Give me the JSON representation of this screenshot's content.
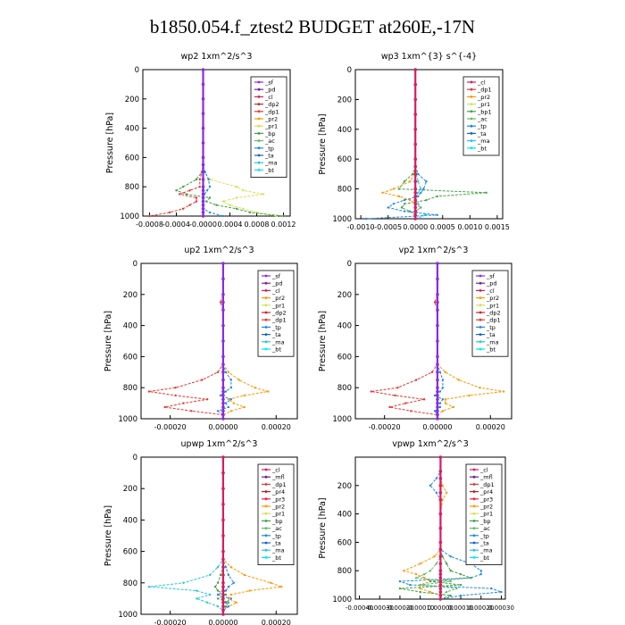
{
  "page": {
    "title": "b1850.054.f_ztest2  BUDGET at260E,-17N"
  },
  "colors": {
    "sf": "#8a2be2",
    "pd": "#7b1fa2",
    "cl": "#d81b60",
    "dp2": "#c62828",
    "dp1": "#e53935",
    "pr4": "#b71c1c",
    "pr3": "#ff1744",
    "pr2": "#ff9800",
    "pr1": "#d4e157",
    "bp": "#43a047",
    "bp1": "#43a047",
    "ac": "#66bb6a",
    "tp": "#1e88e5",
    "ta": "#1565c0",
    "ma": "#26c6da",
    "bt": "#00e5ff",
    "mfl": "#6a1b9a"
  },
  "chart_data": [
    {
      "id": "wp2",
      "type": "line",
      "title": "wp2   1xm^2/s^3",
      "ylabel": "Pressure [hPa]",
      "xlim": [
        -0.0009,
        0.0013
      ],
      "ylim": [
        1000,
        0
      ],
      "xticks": [
        "-0.0008",
        "-0.0004",
        "-0.0000",
        "0.0004",
        "0.0008",
        "0.0012"
      ],
      "xtick_values": [
        -0.0008,
        -0.0004,
        0,
        0.0004,
        0.0008,
        0.0012
      ],
      "yticks": [
        0,
        200,
        400,
        600,
        800,
        1000
      ],
      "legend": [
        "_sf",
        "_pd",
        "_cl",
        "_dp2",
        "_dp1",
        "_pr2",
        "_pr1",
        "_bp",
        "_ac",
        "_tp",
        "_ta",
        "_ma",
        "_bt"
      ],
      "pressure": [
        0,
        100,
        200,
        300,
        400,
        500,
        600,
        650,
        700,
        750,
        800,
        825,
        850,
        875,
        900,
        925,
        950,
        975,
        1000
      ],
      "series": [
        {
          "name": "_pr1",
          "color": "pr1",
          "values": [
            0,
            0,
            0,
            0,
            0,
            0,
            0,
            0,
            2e-05,
            0.0001,
            0.0005,
            0.0006,
            0.0009,
            0.0005,
            0.0003,
            0.0004,
            0.0006,
            0.0008,
            0.0011
          ]
        },
        {
          "name": "_bp",
          "color": "bp",
          "values": [
            0,
            0,
            0,
            0,
            0,
            0,
            0,
            0,
            -2e-05,
            -0.0001,
            -0.0003,
            -0.0004,
            -0.00025,
            0.0001,
            5e-05,
            0.0002,
            0.0005,
            0.0007,
            0.0012
          ]
        },
        {
          "name": "_dp1",
          "color": "dp1",
          "values": [
            0,
            0,
            0,
            0,
            0,
            0,
            0,
            0,
            -2e-05,
            -5e-05,
            -5e-05,
            -0.0002,
            -0.00035,
            -0.0001,
            -0.0001,
            -0.0002,
            -0.0003,
            -0.0005,
            -0.0008
          ]
        },
        {
          "name": "_tp",
          "color": "tp",
          "values": [
            0,
            0,
            0,
            0,
            0,
            0,
            0,
            0,
            3e-05,
            8e-05,
            0.0001,
            6e-05,
            2e-05,
            0,
            0,
            0,
            0,
            0.0001,
            0.0003
          ]
        },
        {
          "name": "_sf",
          "color": "sf",
          "values": [
            0,
            0,
            0,
            0,
            0,
            0,
            0,
            0,
            0,
            0,
            0,
            0,
            0,
            0,
            0,
            0,
            0,
            0,
            0
          ]
        }
      ]
    },
    {
      "id": "wp3",
      "type": "line",
      "title": "wp3   1xm^{3} s^{-4}",
      "ylabel": "Pressure [hPa]",
      "xlim": [
        -0.0011,
        0.0016
      ],
      "ylim": [
        1000,
        0
      ],
      "xticks": [
        "-0.0010",
        "-0.0005",
        "0.0000",
        "0.0005",
        "0.0010",
        "0.0015"
      ],
      "xtick_values": [
        -0.001,
        -0.0005,
        0,
        0.0005,
        0.001,
        0.0015
      ],
      "yticks": [
        0,
        200,
        400,
        600,
        800,
        1000
      ],
      "legend": [
        "_cl",
        "_dp1",
        "_pr2",
        "_pr1",
        "_bp1",
        "_ac",
        "_tp",
        "_ta",
        "_ma",
        "_bt"
      ],
      "pressure": [
        0,
        100,
        200,
        300,
        400,
        500,
        600,
        650,
        700,
        750,
        800,
        825,
        850,
        875,
        900,
        925,
        950,
        975,
        1000
      ],
      "series": [
        {
          "name": "_bp1",
          "color": "bp1",
          "values": [
            0,
            0,
            0,
            0,
            0,
            0,
            0,
            0,
            -5e-05,
            -0.0002,
            -0.0003,
            0.0013,
            0.0004,
            0.0002,
            -0.0002,
            -0.00025,
            -0.0001,
            0,
            0
          ]
        },
        {
          "name": "_pr2",
          "color": "pr2",
          "values": [
            0,
            0,
            0,
            0,
            0,
            0,
            0,
            0,
            -2e-05,
            -0.0001,
            -0.0004,
            -0.0006,
            -0.0003,
            -0.0001,
            0,
            0.0001,
            0,
            0,
            0
          ]
        },
        {
          "name": "_tp",
          "color": "tp",
          "values": [
            0,
            0,
            0,
            0,
            0,
            0,
            0,
            0,
            5e-05,
            0.0002,
            0.00015,
            0.0001,
            5e-05,
            -0.0002,
            -0.0004,
            -0.0005,
            -0.0002,
            0.0004,
            -0.0009
          ]
        },
        {
          "name": "_ma",
          "color": "ma",
          "values": [
            0,
            0,
            0,
            0,
            0,
            0,
            0,
            0,
            2e-05,
            5e-05,
            0.0001,
            5e-05,
            2e-05,
            0,
            5e-05,
            0.0001,
            0,
            0.0002,
            0
          ]
        },
        {
          "name": "_cl",
          "color": "cl",
          "values": [
            0,
            0,
            0,
            0,
            0,
            0,
            0,
            0,
            0,
            0,
            0,
            0,
            0,
            0,
            0,
            0,
            0,
            0,
            0
          ]
        }
      ]
    },
    {
      "id": "up2",
      "type": "line",
      "title": "up2   1xm^2/s^3",
      "ylabel": "Pressure [hPa]",
      "xlim": [
        -0.00031,
        0.00028
      ],
      "ylim": [
        1000,
        0
      ],
      "xticks": [
        "-0.00020",
        "0.00000",
        "0.00020"
      ],
      "xtick_values": [
        -0.0002,
        0,
        0.0002
      ],
      "yticks": [
        0,
        200,
        400,
        600,
        800,
        1000
      ],
      "legend": [
        "_sf",
        "_pd",
        "_cl",
        "_pr2",
        "_pr1",
        "_dp2",
        "_dp1",
        "_tp",
        "_ta",
        "_ma",
        "_bt"
      ],
      "pressure": [
        0,
        100,
        200,
        250,
        300,
        400,
        500,
        600,
        650,
        700,
        750,
        800,
        825,
        850,
        875,
        900,
        925,
        950,
        975,
        1000
      ],
      "series": [
        {
          "name": "_dp1",
          "color": "dp1",
          "values": [
            0,
            0,
            0,
            -1e-05,
            0,
            0,
            0,
            0,
            0,
            -2e-05,
            -8e-05,
            -0.00018,
            -0.00028,
            -0.00018,
            -6e-05,
            -0.00015,
            -0.00022,
            -0.00012,
            0,
            0
          ]
        },
        {
          "name": "_pr2",
          "color": "pr2",
          "values": [
            0,
            0,
            0,
            0,
            0,
            0,
            0,
            0,
            0,
            2e-05,
            6e-05,
            0.00012,
            0.00017,
            8e-05,
            2e-05,
            4e-05,
            8e-05,
            3e-05,
            0,
            0
          ]
        },
        {
          "name": "_tp",
          "color": "tp",
          "values": [
            0,
            0,
            0,
            0,
            0,
            0,
            0,
            0,
            0,
            1e-05,
            3e-05,
            3e-05,
            1e-05,
            -1e-05,
            3e-05,
            1e-05,
            2e-05,
            -2e-05,
            0,
            0
          ]
        },
        {
          "name": "_sf",
          "color": "sf",
          "values": [
            0,
            0,
            0,
            0,
            0,
            0,
            0,
            0,
            0,
            0,
            0,
            0,
            0,
            0,
            0,
            0,
            0,
            0,
            0,
            0
          ]
        }
      ]
    },
    {
      "id": "vp2",
      "type": "line",
      "title": "vp2   1xm^2/s^3",
      "ylabel": "Pressure [hPa]",
      "xlim": [
        -0.00031,
        0.00028
      ],
      "ylim": [
        1000,
        0
      ],
      "xticks": [
        "-0.00020",
        "0.00000",
        "0.00020"
      ],
      "xtick_values": [
        -0.0002,
        0,
        0.0002
      ],
      "yticks": [
        0,
        200,
        400,
        600,
        800,
        1000
      ],
      "legend": [
        "_sf",
        "_pd",
        "_cl",
        "_pr2",
        "_pr1",
        "_dp2",
        "_dp1",
        "_tp",
        "_ta",
        "_ma",
        "_bt"
      ],
      "pressure": [
        0,
        100,
        200,
        250,
        300,
        400,
        500,
        600,
        650,
        700,
        750,
        800,
        825,
        850,
        875,
        900,
        925,
        950,
        975,
        1000
      ],
      "series": [
        {
          "name": "_dp1",
          "color": "dp1",
          "values": [
            0,
            0,
            0,
            -1e-05,
            0,
            0,
            0,
            0,
            0,
            -2e-05,
            -8e-05,
            -0.00015,
            -0.00025,
            -0.00016,
            -5e-05,
            -0.00012,
            -0.00018,
            -0.0001,
            0,
            0
          ]
        },
        {
          "name": "_pr2",
          "color": "pr2",
          "values": [
            0,
            0,
            0,
            0,
            0,
            0,
            0,
            0,
            0,
            3e-05,
            8e-05,
            0.00016,
            0.00025,
            0.00012,
            3e-05,
            3e-05,
            6e-05,
            2e-05,
            0,
            0
          ]
        },
        {
          "name": "_tp",
          "color": "tp",
          "values": [
            0,
            0,
            0,
            0,
            0,
            0,
            0,
            0,
            0,
            1e-05,
            2e-05,
            2e-05,
            1e-05,
            -1e-05,
            2e-05,
            1e-05,
            1e-05,
            -1e-05,
            0,
            0
          ]
        },
        {
          "name": "_sf",
          "color": "sf",
          "values": [
            0,
            0,
            0,
            0,
            0,
            0,
            0,
            0,
            0,
            0,
            0,
            0,
            0,
            0,
            0,
            0,
            0,
            0,
            0,
            0
          ]
        }
      ]
    },
    {
      "id": "upwp",
      "type": "line",
      "title": "upwp   1xm^2/s^3",
      "ylabel": "Pressure [hPa]",
      "xlim": [
        -0.00031,
        0.00028
      ],
      "ylim": [
        1000,
        0
      ],
      "xticks": [
        "-0.00020",
        "0.00000",
        "0.00020"
      ],
      "xtick_values": [
        -0.0002,
        0,
        0.0002
      ],
      "yticks": [
        0,
        200,
        400,
        600,
        800,
        1000
      ],
      "legend": [
        "_cl",
        "_mfl",
        "_dp1",
        "_pr4",
        "_pr3",
        "_pr2",
        "_pr1",
        "_bp",
        "_ac",
        "_tp",
        "_ta",
        "_ma",
        "_bt"
      ],
      "pressure": [
        0,
        100,
        200,
        300,
        400,
        500,
        600,
        650,
        700,
        750,
        800,
        825,
        850,
        875,
        900,
        925,
        950,
        975,
        1000
      ],
      "series": [
        {
          "name": "_ma",
          "color": "ma",
          "values": [
            0,
            0,
            0,
            0,
            0,
            0,
            0,
            0,
            -2e-05,
            -5e-05,
            -0.00015,
            -0.00028,
            -0.0001,
            -5e-05,
            -0.0001,
            -6e-05,
            -2e-05,
            0,
            0
          ]
        },
        {
          "name": "_pr2",
          "color": "pr2",
          "values": [
            0,
            0,
            0,
            0,
            0,
            0,
            0,
            0,
            3e-05,
            8e-05,
            0.00018,
            0.00022,
            0.0001,
            3e-05,
            2e-05,
            5e-05,
            2e-05,
            0,
            0
          ]
        },
        {
          "name": "_tp",
          "color": "tp",
          "values": [
            0,
            0,
            0,
            0,
            0,
            0,
            0,
            0,
            1e-05,
            2e-05,
            4e-05,
            2e-05,
            1e-05,
            -2e-05,
            3e-05,
            1e-05,
            2e-05,
            0,
            0
          ]
        },
        {
          "name": "_bp",
          "color": "bp",
          "values": [
            0,
            0,
            0,
            0,
            0,
            0,
            0,
            0,
            0,
            -1e-05,
            -2e-05,
            -3e-05,
            -2e-05,
            1e-05,
            -2e-05,
            2e-05,
            1e-05,
            0,
            0
          ]
        },
        {
          "name": "_cl",
          "color": "cl",
          "values": [
            0,
            0,
            0,
            0,
            0,
            0,
            0,
            0,
            0,
            0,
            0,
            0,
            0,
            0,
            0,
            0,
            0,
            0,
            0
          ]
        }
      ]
    },
    {
      "id": "vpwp",
      "type": "line",
      "title": "vpwp   1xm^2/s^3",
      "ylabel": "Pressure [hPa]",
      "xlim": [
        -0.00042,
        0.00032
      ],
      "ylim": [
        1000,
        0
      ],
      "xticks": [
        "-0.00040",
        "-0.00030",
        "-0.00020",
        "-0.00010",
        "0.00000",
        "0.00010",
        "0.00020",
        "0.00030"
      ],
      "xtick_values": [
        -0.0004,
        -0.0003,
        -0.0002,
        -0.0001,
        0,
        0.0001,
        0.0002,
        0.0003
      ],
      "yticks": [
        200,
        400,
        600,
        800,
        1000
      ],
      "legend": [
        "_cl",
        "_mfl",
        "_dp1",
        "_pr4",
        "_pr3",
        "_pr2",
        "_pr1",
        "_bp",
        "_ac",
        "_tp",
        "_ta",
        "_ma",
        "_bt"
      ],
      "pressure": [
        0,
        100,
        150,
        200,
        250,
        300,
        400,
        500,
        600,
        650,
        700,
        750,
        800,
        825,
        850,
        875,
        900,
        925,
        950,
        975,
        1000
      ],
      "series": [
        {
          "name": "_tp",
          "color": "tp",
          "values": [
            0,
            0,
            -2e-05,
            -5e-05,
            -2e-05,
            0,
            0,
            0,
            0,
            0,
            5e-05,
            0.00015,
            0.0002,
            0.0002,
            0.00015,
            -0.0002,
            -0.00015,
            0.00025,
            0.0003,
            0.0001,
            0
          ]
        },
        {
          "name": "_pr2",
          "color": "pr2",
          "values": [
            0,
            0,
            0,
            1e-05,
            3e-05,
            1e-05,
            0,
            0,
            0,
            0,
            -3e-05,
            -0.0001,
            -0.00018,
            -0.00012,
            -8e-05,
            -5e-05,
            -0.0001,
            -0.0001,
            -5e-05,
            0,
            0
          ]
        },
        {
          "name": "_bp",
          "color": "bp",
          "values": [
            0,
            0,
            0,
            0,
            0,
            0,
            0,
            0,
            0,
            0,
            1e-05,
            3e-05,
            5e-05,
            0.0001,
            0.00015,
            -5e-05,
            0.0001,
            -0.0002,
            -0.0001,
            5e-05,
            0
          ]
        },
        {
          "name": "_ac",
          "color": "ac",
          "values": [
            0,
            0,
            0,
            0,
            0,
            0,
            0,
            0,
            0,
            0,
            0,
            -2e-05,
            -5e-05,
            -8e-05,
            -0.00012,
            5e-05,
            -0.0001,
            8e-05,
            3e-05,
            0,
            0
          ]
        },
        {
          "name": "_cl",
          "color": "cl",
          "values": [
            0,
            0,
            0,
            0,
            0,
            0,
            0,
            0,
            0,
            0,
            0,
            0,
            0,
            0,
            0,
            0,
            0,
            0,
            0,
            0,
            0
          ]
        }
      ]
    }
  ]
}
